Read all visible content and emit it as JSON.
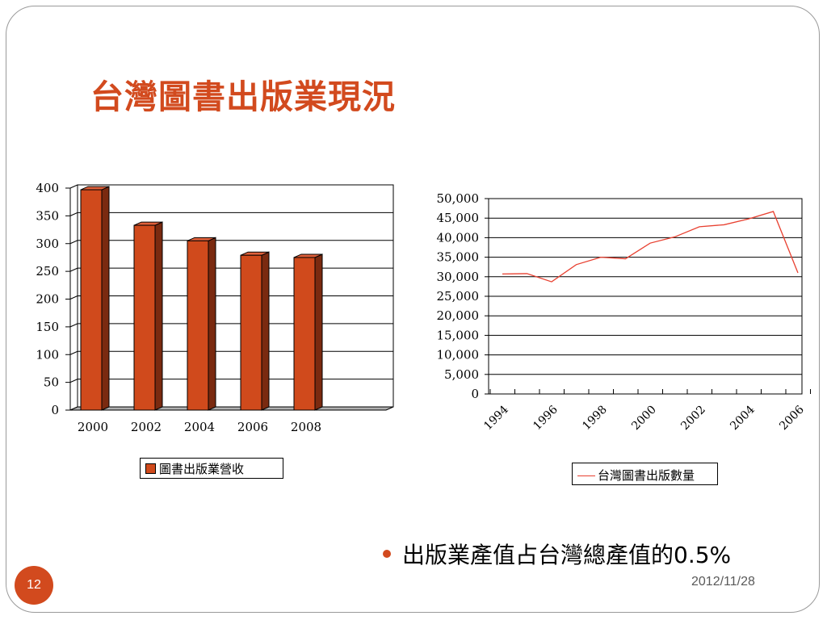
{
  "slide": {
    "title": "台灣圖書出版業現況",
    "bullet": "出版業產值占台灣總產值的0.5%",
    "page_number": "12",
    "date": "2012/11/28",
    "accent_color": "#d24a1e",
    "bullet_icon": "bullet-dot"
  },
  "chart_data": [
    {
      "type": "bar",
      "categories": [
        "2000",
        "2002",
        "2004",
        "2006",
        "2008"
      ],
      "series": [
        {
          "name": "圖書出版業營收",
          "values": [
            397,
            333,
            305,
            279,
            275
          ]
        }
      ],
      "yticks": [
        "0",
        "50",
        "100",
        "150",
        "200",
        "250",
        "300",
        "350",
        "400"
      ],
      "ylim": [
        0,
        400
      ],
      "grid": true,
      "bar_style": "3d",
      "legend": "bottom",
      "bar_color": "#d04a1c",
      "title": "",
      "xlabel": "",
      "ylabel": ""
    },
    {
      "type": "line",
      "x": [
        "1994",
        "1995",
        "1996",
        "1997",
        "1998",
        "1999",
        "2000",
        "2001",
        "2002",
        "2003",
        "2004",
        "2005",
        "2006"
      ],
      "xticks": [
        "1994",
        "1996",
        "1998",
        "2000",
        "2002",
        "2004",
        "2006"
      ],
      "series": [
        {
          "name": "台灣圖書出版數量",
          "values": [
            30700,
            30800,
            28700,
            33100,
            35000,
            34600,
            38600,
            40200,
            42800,
            43300,
            44800,
            46700,
            31000
          ]
        }
      ],
      "yticks": [
        "0",
        "5,000",
        "10,000",
        "15,000",
        "20,000",
        "25,000",
        "30,000",
        "35,000",
        "40,000",
        "45,000",
        "50,000"
      ],
      "ylim": [
        0,
        50000
      ],
      "grid": true,
      "legend": "bottom",
      "line_color": "#e84030",
      "title": "",
      "xlabel": "",
      "ylabel": ""
    }
  ]
}
